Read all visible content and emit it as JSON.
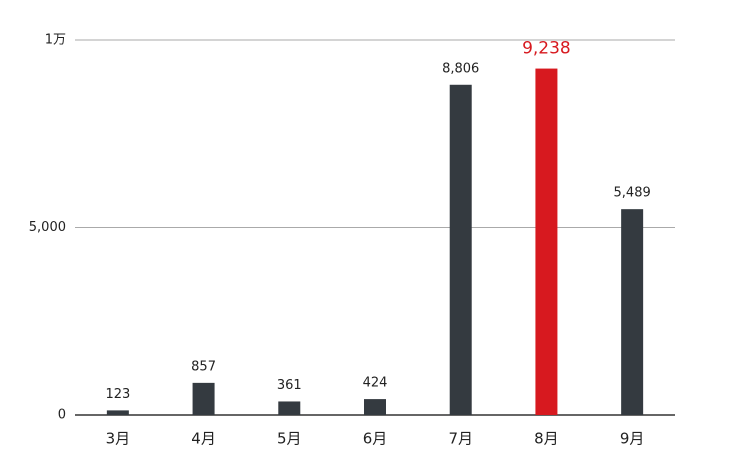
{
  "chart_data": {
    "type": "bar",
    "categories": [
      "3月",
      "4月",
      "5月",
      "6月",
      "7月",
      "8月",
      "9月"
    ],
    "values": [
      123,
      857,
      361,
      424,
      8806,
      9238,
      5489
    ],
    "value_labels": [
      "123",
      "857",
      "361",
      "424",
      "8,806",
      "9,238",
      "5,489"
    ],
    "color": "#343a40",
    "colors": [
      "#343a40",
      "#343a40",
      "#343a40",
      "#343a40",
      "#343a40",
      "#d7191f",
      "#343a40"
    ],
    "ylim": [
      0,
      10000
    ],
    "yticks": [
      0,
      {
        "value": 5000,
        "label": "5,000"
      },
      {
        "value": 10000,
        "label": "1万"
      }
    ],
    "grid": true
  }
}
